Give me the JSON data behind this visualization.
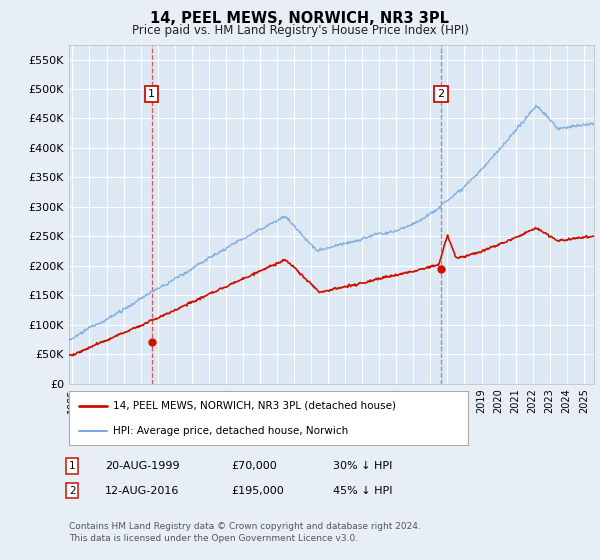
{
  "title": "14, PEEL MEWS, NORWICH, NR3 3PL",
  "subtitle": "Price paid vs. HM Land Registry's House Price Index (HPI)",
  "ylabel_ticks": [
    "£0",
    "£50K",
    "£100K",
    "£150K",
    "£200K",
    "£250K",
    "£300K",
    "£350K",
    "£400K",
    "£450K",
    "£500K",
    "£550K"
  ],
  "ytick_values": [
    0,
    50000,
    100000,
    150000,
    200000,
    250000,
    300000,
    350000,
    400000,
    450000,
    500000,
    550000
  ],
  "ylim": [
    0,
    575000
  ],
  "xlim_start": 1994.8,
  "xlim_end": 2025.6,
  "background_color": "#e8eef5",
  "plot_bg_color": "#dce8f4",
  "grid_color": "#ffffff",
  "hpi_color": "#7aaadd",
  "price_color": "#cc1100",
  "vline1_color": "#dd4444",
  "vline2_color": "#888888",
  "sale1_date": "20-AUG-1999",
  "sale1_price": 70000,
  "sale1_label": "30% ↓ HPI",
  "sale1_year": 1999.64,
  "sale2_date": "12-AUG-2016",
  "sale2_price": 195000,
  "sale2_label": "45% ↓ HPI",
  "sale2_year": 2016.62,
  "legend_line1": "14, PEEL MEWS, NORWICH, NR3 3PL (detached house)",
  "legend_line2": "HPI: Average price, detached house, Norwich",
  "footer": "Contains HM Land Registry data © Crown copyright and database right 2024.\nThis data is licensed under the Open Government Licence v3.0.",
  "xtick_years": [
    1995,
    1996,
    1997,
    1998,
    1999,
    2000,
    2001,
    2002,
    2003,
    2004,
    2005,
    2006,
    2007,
    2008,
    2009,
    2010,
    2011,
    2012,
    2013,
    2014,
    2015,
    2016,
    2017,
    2018,
    2019,
    2020,
    2021,
    2022,
    2023,
    2024,
    2025
  ]
}
